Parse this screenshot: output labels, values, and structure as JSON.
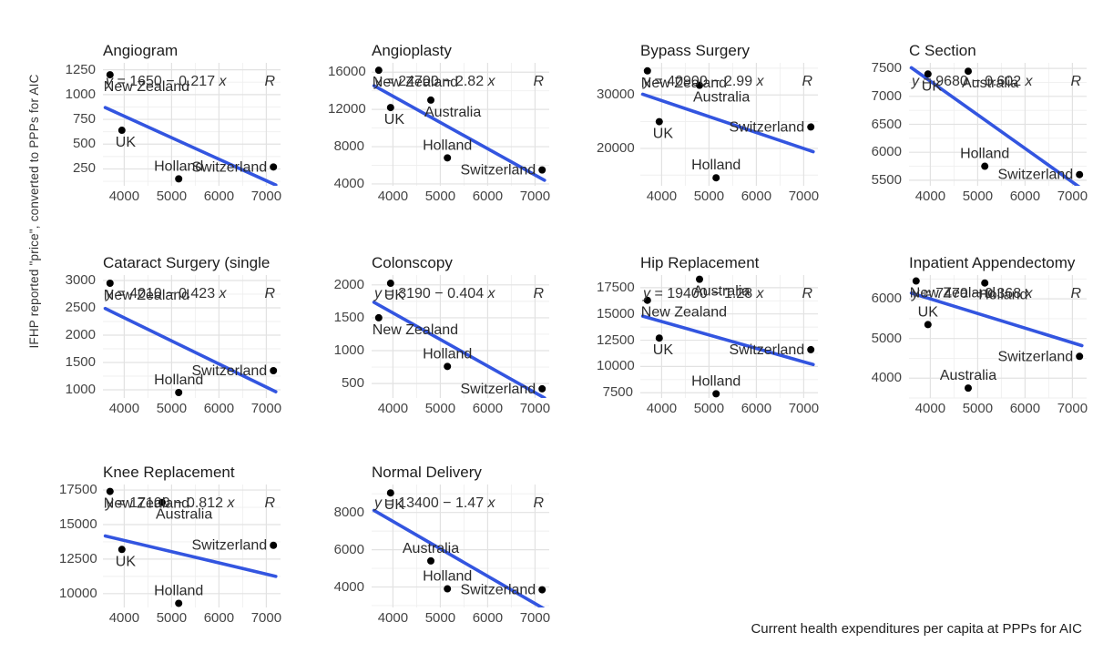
{
  "axes": {
    "y_label": "IFHP reported \"price\", converted to PPPs for AIC",
    "x_label": "Current health expenditures per capita at PPPs for AIC"
  },
  "chart_data": {
    "type": "scatter",
    "note": "small-multiples scatter plots with linear fit lines",
    "x_ticks": [
      4000,
      5000,
      6000,
      7000
    ],
    "xlim": [
      3550,
      7300
    ],
    "line_color": "#3355E0",
    "point_color": "#000000",
    "grid_major_color": "#e2e2e2",
    "grid_minor_color": "#efefef",
    "r_label": "R",
    "facets": [
      {
        "title": "Angiogram",
        "eq_intercept": "1650",
        "eq_slope": "0.217",
        "y_ticks": [
          250,
          500,
          750,
          1000,
          1250
        ],
        "ylim": [
          80,
          1320
        ],
        "points": [
          {
            "label": "New Zealand",
            "x": 3700,
            "y": 1200,
            "label_pos": "below"
          },
          {
            "label": "UK",
            "x": 3950,
            "y": 640,
            "label_pos": "below"
          },
          {
            "label": "Holland",
            "x": 5150,
            "y": 150,
            "label_pos": "above"
          },
          {
            "label": "Switzerland",
            "x": 7150,
            "y": 270,
            "label_pos": "left"
          }
        ]
      },
      {
        "title": "Angioplasty",
        "eq_intercept": "24700",
        "eq_slope": "2.82",
        "y_ticks": [
          4000,
          8000,
          12000,
          16000
        ],
        "ylim": [
          3800,
          17000
        ],
        "points": [
          {
            "label": "New Zealand",
            "x": 3700,
            "y": 16200,
            "label_pos": "below"
          },
          {
            "label": "UK",
            "x": 3950,
            "y": 12200,
            "label_pos": "below"
          },
          {
            "label": "Australia",
            "x": 4800,
            "y": 13000,
            "label_pos": "below"
          },
          {
            "label": "Holland",
            "x": 5150,
            "y": 6800,
            "label_pos": "above"
          },
          {
            "label": "Switzerland",
            "x": 7150,
            "y": 5500,
            "label_pos": "left"
          }
        ]
      },
      {
        "title": "Bypass Surgery",
        "eq_intercept": "40900",
        "eq_slope": "2.99",
        "y_ticks": [
          20000,
          30000
        ],
        "ylim": [
          13000,
          36000
        ],
        "points": [
          {
            "label": "New Zealand",
            "x": 3700,
            "y": 34500,
            "label_pos": "below"
          },
          {
            "label": "Australia",
            "x": 4800,
            "y": 31800,
            "label_pos": "below"
          },
          {
            "label": "UK",
            "x": 3950,
            "y": 25000,
            "label_pos": "below"
          },
          {
            "label": "Switzerland",
            "x": 7150,
            "y": 24000,
            "label_pos": "left"
          },
          {
            "label": "Holland",
            "x": 5150,
            "y": 14500,
            "label_pos": "above"
          }
        ]
      },
      {
        "title": "C Section",
        "eq_intercept": "9680",
        "eq_slope": "0.602",
        "y_ticks": [
          5500,
          6000,
          6500,
          7000,
          7500
        ],
        "ylim": [
          5400,
          7600
        ],
        "points": [
          {
            "label": "UK",
            "x": 3950,
            "y": 7400,
            "label_pos": "below"
          },
          {
            "label": "Australia",
            "x": 4800,
            "y": 7450,
            "label_pos": "below"
          },
          {
            "label": "Holland",
            "x": 5150,
            "y": 5750,
            "label_pos": "above"
          },
          {
            "label": "Switzerland",
            "x": 7150,
            "y": 5600,
            "label_pos": "left"
          }
        ]
      },
      {
        "title": "Cataract Surgery (single",
        "eq_intercept": "4010",
        "eq_slope": "0.423",
        "y_ticks": [
          1000,
          1500,
          2000,
          2500,
          3000
        ],
        "ylim": [
          850,
          3100
        ],
        "points": [
          {
            "label": "New Zealand",
            "x": 3700,
            "y": 2950,
            "label_pos": "below"
          },
          {
            "label": "Holland",
            "x": 5150,
            "y": 950,
            "label_pos": "above"
          },
          {
            "label": "Switzerland",
            "x": 7150,
            "y": 1350,
            "label_pos": "left"
          }
        ]
      },
      {
        "title": "Colonscopy",
        "eq_intercept": "3190",
        "eq_slope": "0.404",
        "y_ticks": [
          500,
          1000,
          1500,
          2000
        ],
        "ylim": [
          280,
          2150
        ],
        "points": [
          {
            "label": "UK",
            "x": 3950,
            "y": 2025,
            "label_pos": "below"
          },
          {
            "label": "New Zealand",
            "x": 3700,
            "y": 1500,
            "label_pos": "below"
          },
          {
            "label": "Holland",
            "x": 5150,
            "y": 760,
            "label_pos": "above"
          },
          {
            "label": "Switzerland",
            "x": 7150,
            "y": 420,
            "label_pos": "left"
          }
        ]
      },
      {
        "title": "Hip Replacement",
        "eq_intercept": "19400",
        "eq_slope": "1.28",
        "y_ticks": [
          7500,
          10000,
          12500,
          15000,
          17500
        ],
        "ylim": [
          7000,
          18700
        ],
        "points": [
          {
            "label": "Australia",
            "x": 4800,
            "y": 18300,
            "label_pos": "below"
          },
          {
            "label": "New Zealand",
            "x": 3700,
            "y": 16300,
            "label_pos": "below"
          },
          {
            "label": "UK",
            "x": 3950,
            "y": 12700,
            "label_pos": "below"
          },
          {
            "label": "Switzerland",
            "x": 7150,
            "y": 11600,
            "label_pos": "left"
          },
          {
            "label": "Holland",
            "x": 5150,
            "y": 7400,
            "label_pos": "above"
          }
        ]
      },
      {
        "title": "Inpatient Appendectomy",
        "eq_intercept": "7470",
        "eq_slope": "0.368",
        "y_ticks": [
          4000,
          5000,
          6000
        ],
        "ylim": [
          3500,
          6600
        ],
        "points": [
          {
            "label": "New Zealand",
            "x": 3700,
            "y": 6450,
            "label_pos": "below"
          },
          {
            "label": "Holland",
            "x": 5150,
            "y": 6400,
            "label_pos": "below"
          },
          {
            "label": "UK",
            "x": 3950,
            "y": 5350,
            "label_pos": "above"
          },
          {
            "label": "Switzerland",
            "x": 7150,
            "y": 4550,
            "label_pos": "left"
          },
          {
            "label": "Australia",
            "x": 4800,
            "y": 3750,
            "label_pos": "above"
          }
        ]
      },
      {
        "title": "Knee Replacement",
        "eq_intercept": "17100",
        "eq_slope": "0.812",
        "y_ticks": [
          10000,
          12500,
          15000,
          17500
        ],
        "ylim": [
          9000,
          17900
        ],
        "points": [
          {
            "label": "New Zealand",
            "x": 3700,
            "y": 17400,
            "label_pos": "below"
          },
          {
            "label": "Australia",
            "x": 4800,
            "y": 16600,
            "label_pos": "below"
          },
          {
            "label": "UK",
            "x": 3950,
            "y": 13200,
            "label_pos": "below"
          },
          {
            "label": "Switzerland",
            "x": 7150,
            "y": 13500,
            "label_pos": "left"
          },
          {
            "label": "Holland",
            "x": 5150,
            "y": 9300,
            "label_pos": "above"
          }
        ]
      },
      {
        "title": "Normal Delivery",
        "eq_intercept": "13400",
        "eq_slope": "1.47",
        "y_ticks": [
          4000,
          6000,
          8000
        ],
        "ylim": [
          2900,
          9500
        ],
        "points": [
          {
            "label": "UK",
            "x": 3950,
            "y": 9050,
            "label_pos": "below"
          },
          {
            "label": "Australia",
            "x": 4800,
            "y": 5400,
            "label_pos": "above"
          },
          {
            "label": "Holland",
            "x": 5150,
            "y": 3900,
            "label_pos": "above"
          },
          {
            "label": "Switzerland",
            "x": 7150,
            "y": 3850,
            "label_pos": "left"
          }
        ]
      }
    ]
  }
}
